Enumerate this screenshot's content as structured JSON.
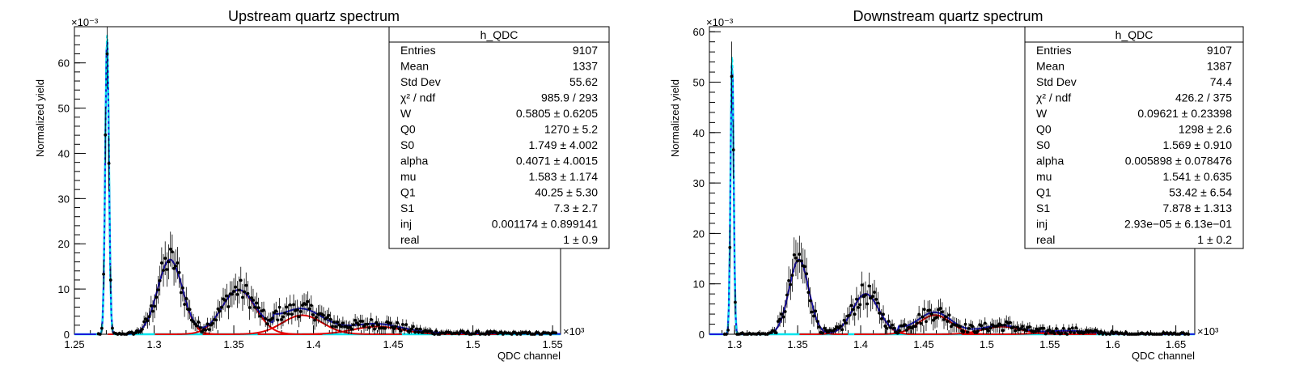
{
  "chart_data": [
    {
      "type": "scatter",
      "title": "Upstream quartz spectrum",
      "xlabel": "QDC channel",
      "ylabel": "Normalized yield",
      "x_exponent_label": "×10³",
      "y_exponent_label": "×10⁻³",
      "xlim": [
        1.25,
        1.555
      ],
      "ylim": [
        0,
        68
      ],
      "x_ticks": [
        1.25,
        1.3,
        1.35,
        1.4,
        1.45,
        1.5,
        1.55
      ],
      "x_tick_labels": [
        "1.25",
        "1.3",
        "1.35",
        "1.4",
        "1.45",
        "1.5",
        "1.55"
      ],
      "y_ticks": [
        0,
        10,
        20,
        30,
        40,
        50,
        60
      ],
      "y_tick_labels": [
        "0",
        "10",
        "20",
        "30",
        "40",
        "50",
        "60"
      ],
      "grid": false,
      "legend_position": "top-right",
      "stats_box": {
        "title": "h_QDC",
        "rows": [
          [
            "Entries",
            "9107"
          ],
          [
            "Mean",
            "1337"
          ],
          [
            "Std Dev",
            "55.62"
          ],
          [
            "χ² / ndf",
            "985.9 / 293"
          ],
          [
            "W",
            "0.5805  ± 0.6205"
          ],
          [
            "Q0",
            "1270  ± 5.2"
          ],
          [
            "S0",
            "1.749  ± 4.002"
          ],
          [
            "alpha",
            "0.4071  ± 4.0015"
          ],
          [
            "mu",
            "1.583  ± 1.174"
          ],
          [
            "Q1",
            "40.25  ± 5.30"
          ],
          [
            "S1",
            "7.3  ± 2.7"
          ],
          [
            "inj",
            "0.001174  ± 0.899141"
          ],
          [
            "real",
            "1 ± 0.9"
          ]
        ]
      },
      "model": {
        "pedestal": {
          "mean": 1.2705,
          "sigma": 0.00115,
          "amp": 66
        },
        "peaks": [
          {
            "mean": 1.31,
            "sigma": 0.0078,
            "amp": 16.5
          },
          {
            "mean": 1.353,
            "sigma": 0.0105,
            "amp": 9.8
          },
          {
            "mean": 1.393,
            "sigma": 0.0125,
            "amp": 4.2
          },
          {
            "mean": 1.44,
            "sigma": 0.015,
            "amp": 1.7
          }
        ],
        "tail": {
          "start": 1.375,
          "amp": 2.0,
          "decay": 0.055
        },
        "data_range": [
          1.265,
          1.552
        ]
      },
      "colors": {
        "pedestal": "#00e5ee",
        "fit": "#1a1adb",
        "peaks": "#e00000",
        "points": "#000000"
      }
    },
    {
      "type": "scatter",
      "title": "Downstream quartz spectrum",
      "xlabel": "QDC channel",
      "ylabel": "Normalized yield",
      "x_exponent_label": "×10³",
      "y_exponent_label": "×10⁻³",
      "xlim": [
        1.28,
        1.665
      ],
      "ylim": [
        0,
        61
      ],
      "x_ticks": [
        1.3,
        1.35,
        1.4,
        1.45,
        1.5,
        1.55,
        1.6,
        1.65
      ],
      "x_tick_labels": [
        "1.3",
        "1.35",
        "1.4",
        "1.45",
        "1.5",
        "1.55",
        "1.6",
        "1.65"
      ],
      "y_ticks": [
        0,
        10,
        20,
        30,
        40,
        50,
        60
      ],
      "y_tick_labels": [
        "0",
        "10",
        "20",
        "30",
        "40",
        "50",
        "60"
      ],
      "grid": false,
      "legend_position": "top-right",
      "stats_box": {
        "title": "h_QDC",
        "rows": [
          [
            "Entries",
            "9107"
          ],
          [
            "Mean",
            "1387"
          ],
          [
            "Std Dev",
            "74.4"
          ],
          [
            "χ² / ndf",
            "426.2 / 375"
          ],
          [
            "W",
            "0.09621 ± 0.23398"
          ],
          [
            "Q0",
            "1298 ± 2.6"
          ],
          [
            "S0",
            "1.569 ± 0.910"
          ],
          [
            "alpha",
            "0.005898 ± 0.078476"
          ],
          [
            "mu",
            "1.541 ± 0.635"
          ],
          [
            "Q1",
            "53.42 ± 6.54"
          ],
          [
            "S1",
            "7.878 ± 1.313"
          ],
          [
            "inj",
            "2.93e−05 ± 6.13e−01"
          ],
          [
            "real",
            "1 ± 0.2"
          ]
        ]
      },
      "model": {
        "pedestal": {
          "mean": 1.298,
          "sigma": 0.0012,
          "amp": 55
        },
        "peaks": [
          {
            "mean": 1.351,
            "sigma": 0.0078,
            "amp": 14.8
          },
          {
            "mean": 1.404,
            "sigma": 0.0105,
            "amp": 8.0
          },
          {
            "mean": 1.459,
            "sigma": 0.0128,
            "amp": 3.8
          },
          {
            "mean": 1.512,
            "sigma": 0.015,
            "amp": 1.5
          },
          {
            "mean": 1.565,
            "sigma": 0.017,
            "amp": 0.6
          }
        ],
        "tail": {
          "start": 1.43,
          "amp": 0.9,
          "decay": 0.06
        },
        "data_range": [
          1.292,
          1.66
        ]
      },
      "colors": {
        "pedestal": "#00e5ee",
        "fit": "#1a1adb",
        "peaks": "#e00000",
        "points": "#000000"
      }
    }
  ]
}
